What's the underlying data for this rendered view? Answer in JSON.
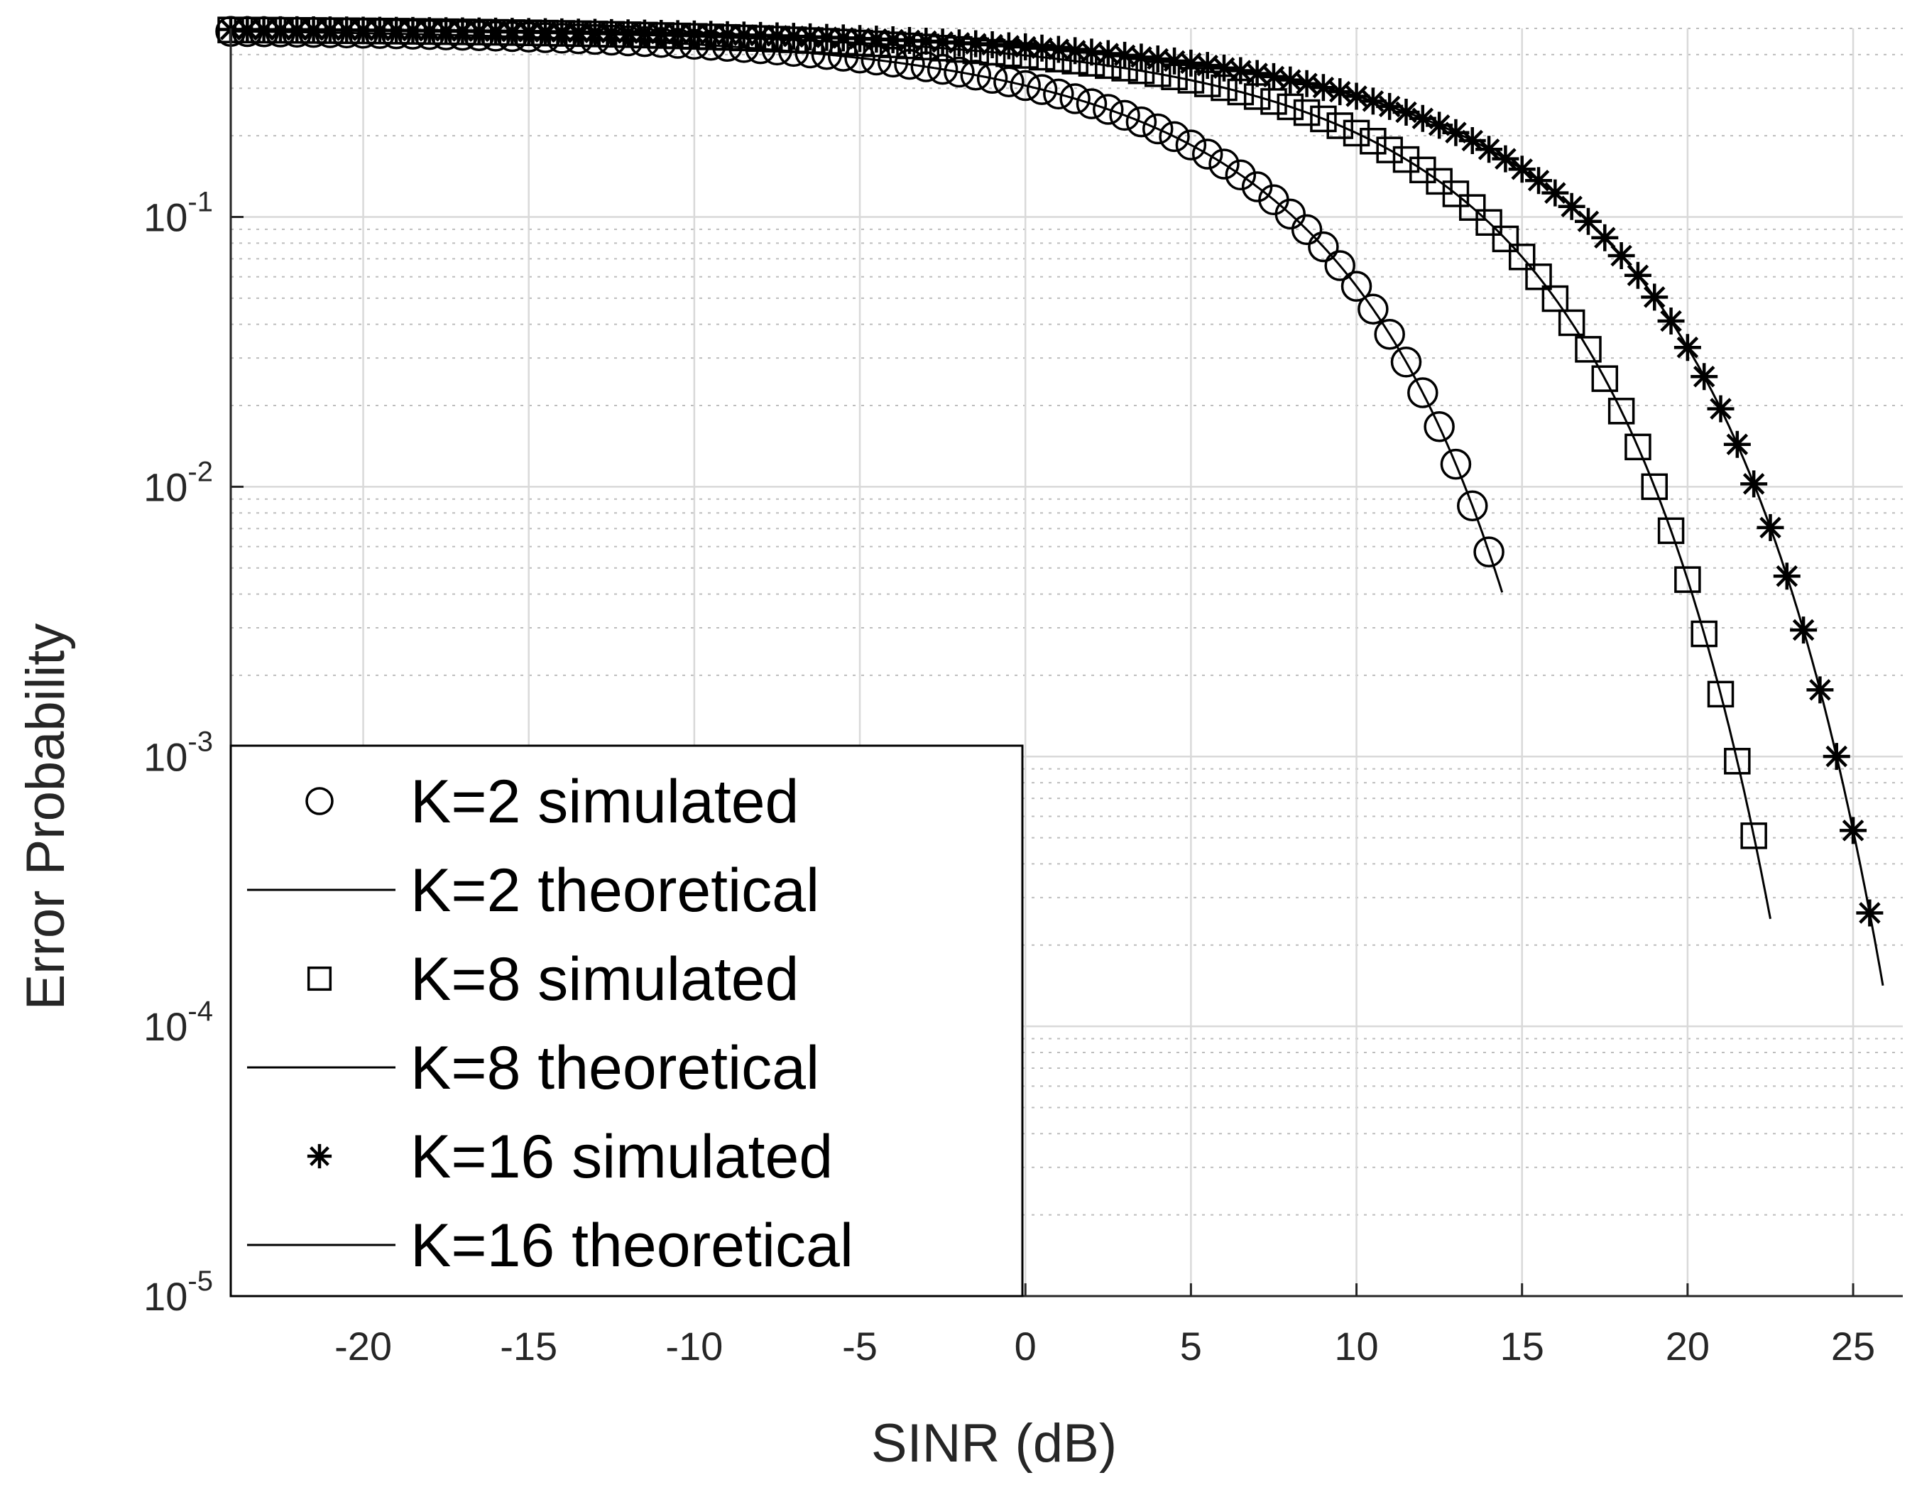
{
  "chart_data": {
    "type": "line",
    "title": "",
    "xlabel": "SINR (dB)",
    "ylabel": "Error Probability",
    "xlim": [
      -24,
      26.5
    ],
    "ylim": [
      1e-05,
      0.5
    ],
    "yscale": "log",
    "grid": true,
    "minor_grid": true,
    "legend_position": "bottom-left",
    "x_ticks": [
      -20,
      -15,
      -10,
      -5,
      0,
      5,
      10,
      15,
      20,
      25
    ],
    "x_tick_labels": [
      "-20",
      "-15",
      "-10",
      "-5",
      "0",
      "5",
      "10",
      "15",
      "20",
      "25"
    ],
    "y_ticks": [
      1e-05,
      0.0001,
      0.001,
      0.01,
      0.1
    ],
    "y_tick_labels": [
      {
        "base": "10",
        "exp": "-5"
      },
      {
        "base": "10",
        "exp": "-4"
      },
      {
        "base": "10",
        "exp": "-3"
      },
      {
        "base": "10",
        "exp": "-2"
      },
      {
        "base": "10",
        "exp": "-1"
      }
    ],
    "series": [
      {
        "name": "K=2 simulated",
        "K": 2,
        "style": "marker",
        "marker": "circle",
        "x_start": -24,
        "x_end": 14.2,
        "step": 0.5,
        "ecc": 3.93
      },
      {
        "name": "K=2 theoretical",
        "K": 2,
        "style": "line",
        "x_start": -24,
        "x_end": 14.4,
        "ecc": 3.93
      },
      {
        "name": "K=8 simulated",
        "K": 8,
        "style": "marker",
        "marker": "square",
        "x_start": -24,
        "x_end": 22.1,
        "step": 0.5,
        "ecc": 3.67
      },
      {
        "name": "K=8 theoretical",
        "K": 8,
        "style": "line",
        "x_start": -24,
        "x_end": 22.5,
        "ecc": 3.67
      },
      {
        "name": "K=16 simulated",
        "K": 16,
        "style": "marker",
        "marker": "asterisk",
        "x_start": -24,
        "x_end": 25.6,
        "step": 0.5,
        "ecc": 3.69
      },
      {
        "name": "K=16 theoretical",
        "K": 16,
        "style": "line",
        "x_start": -24,
        "x_end": 25.9,
        "ecc": 3.69
      }
    ],
    "legend": [
      {
        "label": "K=2 simulated",
        "marker": "circle"
      },
      {
        "label": "K=2 theoretical",
        "marker": "line"
      },
      {
        "label": "K=8 simulated",
        "marker": "square"
      },
      {
        "label": "K=8 theoretical",
        "marker": "line"
      },
      {
        "label": "K=16 simulated",
        "marker": "asterisk"
      },
      {
        "label": "K=16 theoretical",
        "marker": "line"
      }
    ]
  }
}
